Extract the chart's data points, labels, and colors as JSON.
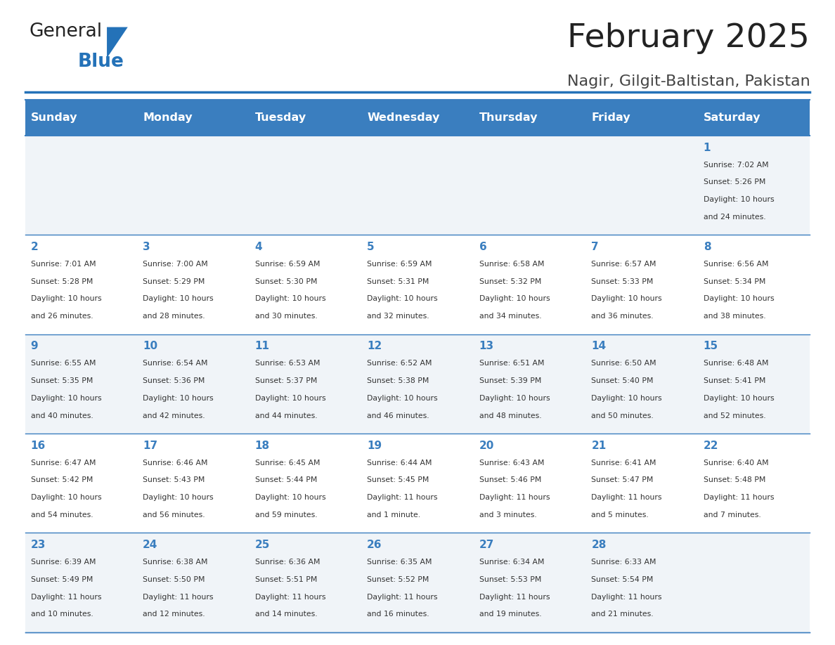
{
  "title": "February 2025",
  "subtitle": "Nagir, Gilgit-Baltistan, Pakistan",
  "days_of_week": [
    "Sunday",
    "Monday",
    "Tuesday",
    "Wednesday",
    "Thursday",
    "Friday",
    "Saturday"
  ],
  "header_bg": "#3a7ebf",
  "header_text": "#ffffff",
  "row_bg_odd": "#f0f4f8",
  "row_bg_even": "#ffffff",
  "cell_border": "#3a7ebf",
  "day_number_color": "#3a7ebf",
  "text_color": "#333333",
  "title_color": "#222222",
  "subtitle_color": "#444444",
  "logo_text_color": "#222222",
  "logo_blue_color": "#2472b8",
  "calendar_data": [
    [
      {
        "day": null,
        "sunrise": null,
        "sunset": null,
        "daylight": null
      },
      {
        "day": null,
        "sunrise": null,
        "sunset": null,
        "daylight": null
      },
      {
        "day": null,
        "sunrise": null,
        "sunset": null,
        "daylight": null
      },
      {
        "day": null,
        "sunrise": null,
        "sunset": null,
        "daylight": null
      },
      {
        "day": null,
        "sunrise": null,
        "sunset": null,
        "daylight": null
      },
      {
        "day": null,
        "sunrise": null,
        "sunset": null,
        "daylight": null
      },
      {
        "day": 1,
        "sunrise": "7:02 AM",
        "sunset": "5:26 PM",
        "daylight": "10 hours\nand 24 minutes."
      }
    ],
    [
      {
        "day": 2,
        "sunrise": "7:01 AM",
        "sunset": "5:28 PM",
        "daylight": "10 hours\nand 26 minutes."
      },
      {
        "day": 3,
        "sunrise": "7:00 AM",
        "sunset": "5:29 PM",
        "daylight": "10 hours\nand 28 minutes."
      },
      {
        "day": 4,
        "sunrise": "6:59 AM",
        "sunset": "5:30 PM",
        "daylight": "10 hours\nand 30 minutes."
      },
      {
        "day": 5,
        "sunrise": "6:59 AM",
        "sunset": "5:31 PM",
        "daylight": "10 hours\nand 32 minutes."
      },
      {
        "day": 6,
        "sunrise": "6:58 AM",
        "sunset": "5:32 PM",
        "daylight": "10 hours\nand 34 minutes."
      },
      {
        "day": 7,
        "sunrise": "6:57 AM",
        "sunset": "5:33 PM",
        "daylight": "10 hours\nand 36 minutes."
      },
      {
        "day": 8,
        "sunrise": "6:56 AM",
        "sunset": "5:34 PM",
        "daylight": "10 hours\nand 38 minutes."
      }
    ],
    [
      {
        "day": 9,
        "sunrise": "6:55 AM",
        "sunset": "5:35 PM",
        "daylight": "10 hours\nand 40 minutes."
      },
      {
        "day": 10,
        "sunrise": "6:54 AM",
        "sunset": "5:36 PM",
        "daylight": "10 hours\nand 42 minutes."
      },
      {
        "day": 11,
        "sunrise": "6:53 AM",
        "sunset": "5:37 PM",
        "daylight": "10 hours\nand 44 minutes."
      },
      {
        "day": 12,
        "sunrise": "6:52 AM",
        "sunset": "5:38 PM",
        "daylight": "10 hours\nand 46 minutes."
      },
      {
        "day": 13,
        "sunrise": "6:51 AM",
        "sunset": "5:39 PM",
        "daylight": "10 hours\nand 48 minutes."
      },
      {
        "day": 14,
        "sunrise": "6:50 AM",
        "sunset": "5:40 PM",
        "daylight": "10 hours\nand 50 minutes."
      },
      {
        "day": 15,
        "sunrise": "6:48 AM",
        "sunset": "5:41 PM",
        "daylight": "10 hours\nand 52 minutes."
      }
    ],
    [
      {
        "day": 16,
        "sunrise": "6:47 AM",
        "sunset": "5:42 PM",
        "daylight": "10 hours\nand 54 minutes."
      },
      {
        "day": 17,
        "sunrise": "6:46 AM",
        "sunset": "5:43 PM",
        "daylight": "10 hours\nand 56 minutes."
      },
      {
        "day": 18,
        "sunrise": "6:45 AM",
        "sunset": "5:44 PM",
        "daylight": "10 hours\nand 59 minutes."
      },
      {
        "day": 19,
        "sunrise": "6:44 AM",
        "sunset": "5:45 PM",
        "daylight": "11 hours\nand 1 minute."
      },
      {
        "day": 20,
        "sunrise": "6:43 AM",
        "sunset": "5:46 PM",
        "daylight": "11 hours\nand 3 minutes."
      },
      {
        "day": 21,
        "sunrise": "6:41 AM",
        "sunset": "5:47 PM",
        "daylight": "11 hours\nand 5 minutes."
      },
      {
        "day": 22,
        "sunrise": "6:40 AM",
        "sunset": "5:48 PM",
        "daylight": "11 hours\nand 7 minutes."
      }
    ],
    [
      {
        "day": 23,
        "sunrise": "6:39 AM",
        "sunset": "5:49 PM",
        "daylight": "11 hours\nand 10 minutes."
      },
      {
        "day": 24,
        "sunrise": "6:38 AM",
        "sunset": "5:50 PM",
        "daylight": "11 hours\nand 12 minutes."
      },
      {
        "day": 25,
        "sunrise": "6:36 AM",
        "sunset": "5:51 PM",
        "daylight": "11 hours\nand 14 minutes."
      },
      {
        "day": 26,
        "sunrise": "6:35 AM",
        "sunset": "5:52 PM",
        "daylight": "11 hours\nand 16 minutes."
      },
      {
        "day": 27,
        "sunrise": "6:34 AM",
        "sunset": "5:53 PM",
        "daylight": "11 hours\nand 19 minutes."
      },
      {
        "day": 28,
        "sunrise": "6:33 AM",
        "sunset": "5:54 PM",
        "daylight": "11 hours\nand 21 minutes."
      },
      {
        "day": null,
        "sunrise": null,
        "sunset": null,
        "daylight": null
      }
    ]
  ]
}
